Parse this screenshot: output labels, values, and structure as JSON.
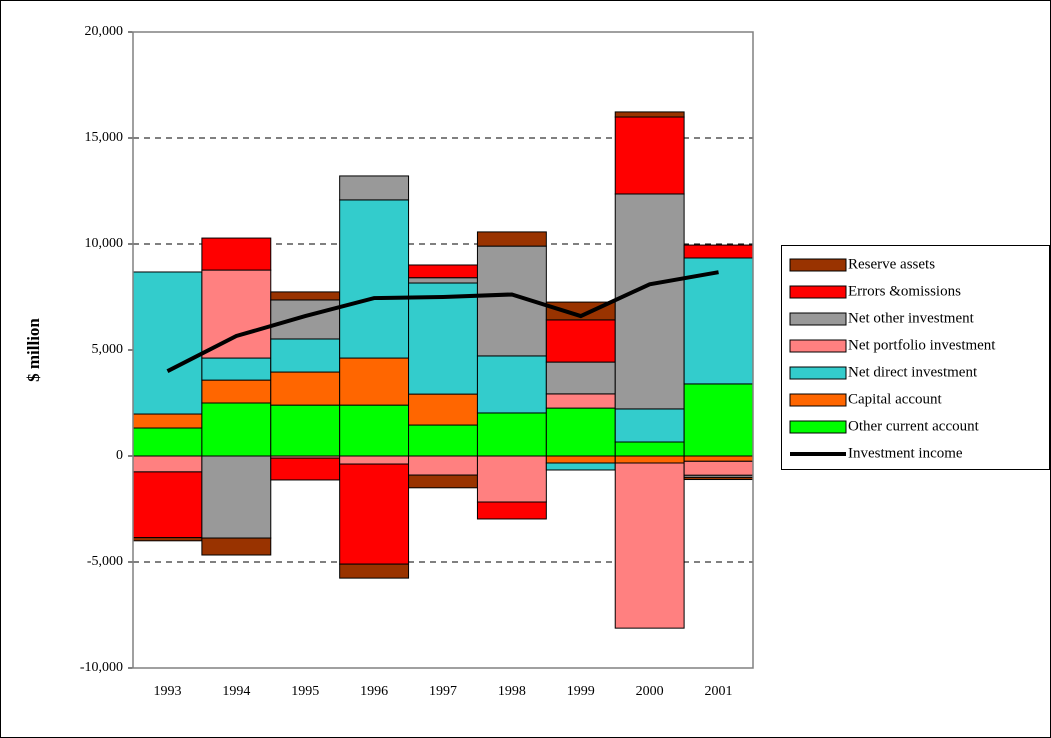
{
  "chart_data": {
    "type": "bar",
    "y_label": "$ million",
    "categories": [
      "1993",
      "1994",
      "1995",
      "1996",
      "1997",
      "1998",
      "1999",
      "2000",
      "2001"
    ],
    "series": [
      {
        "name": "Other current account",
        "color": "#00ff00",
        "values": [
          1320,
          2500,
          2400,
          2400,
          1460,
          2030,
          2260,
          660,
          3400
        ]
      },
      {
        "name": "Capital account",
        "color": "#ff6600",
        "values": [
          660,
          1080,
          1560,
          2220,
          1460,
          0,
          -330,
          -330,
          -250
        ]
      },
      {
        "name": "Net direct investment",
        "color": "#33cccc",
        "values": [
          6700,
          1040,
          1560,
          7460,
          5240,
          2690,
          -330,
          1560,
          5940
        ]
      },
      {
        "name": "Net portfolio investment",
        "color": "#ff8080",
        "values": [
          -750,
          4150,
          -100,
          -380,
          -900,
          -2170,
          670,
          -7790,
          -660
        ]
      },
      {
        "name": "Net other investment",
        "color": "#999999",
        "values": [
          0,
          -3870,
          1840,
          1130,
          250,
          5180,
          1500,
          10140,
          -100
        ]
      },
      {
        "name": "Errors &omissions",
        "color": "#ff0000",
        "values": [
          -3100,
          1510,
          -1030,
          -4720,
          600,
          -800,
          1990,
          3630,
          610
        ]
      },
      {
        "name": "Reserve assets",
        "color": "#993300",
        "values": [
          -150,
          -800,
          380,
          -660,
          -600,
          670,
          840,
          240,
          -100
        ]
      },
      {
        "name": "Investment income",
        "type": "line",
        "color": "#000000",
        "values": [
          4000,
          5660,
          6600,
          7450,
          7500,
          7620,
          6600,
          8100,
          8670
        ]
      }
    ],
    "ylim": [
      -10000,
      20000
    ],
    "yticks": [
      {
        "value": -10000,
        "label": "-10,000"
      },
      {
        "value": -5000,
        "label": "-5,000"
      },
      0,
      {
        "value": 5000,
        "label": "5,000"
      },
      {
        "value": 10000,
        "label": "10,000"
      },
      {
        "value": 15000,
        "label": "15,000"
      },
      {
        "value": 20000,
        "label": "20,000"
      }
    ],
    "grid": true
  }
}
